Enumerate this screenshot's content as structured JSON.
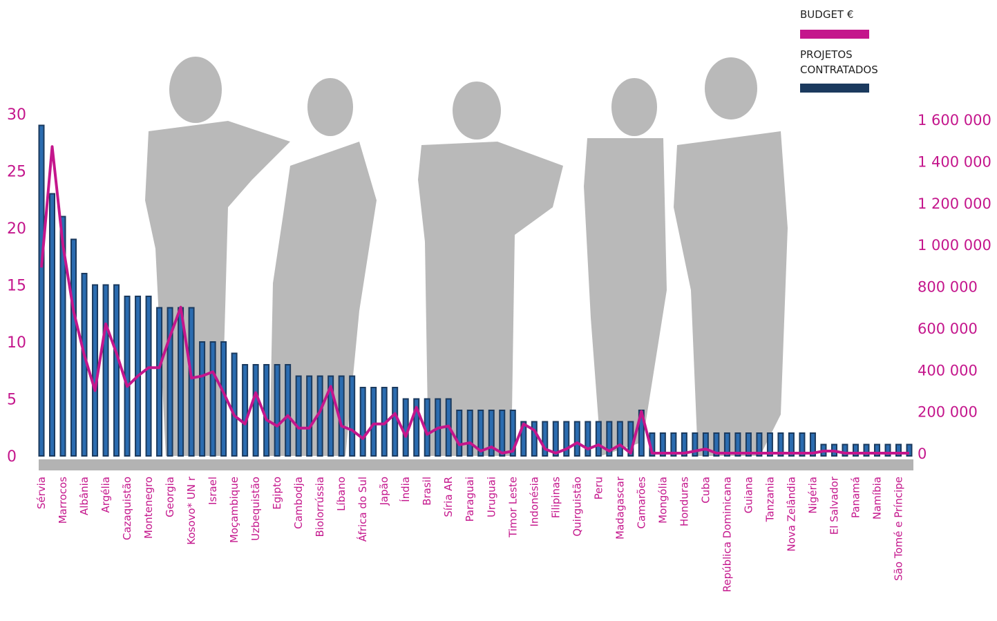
{
  "chart_data": {
    "type": "bar-line",
    "categories": [
      "Sérvia",
      null,
      "Marrocos",
      null,
      "Albânia",
      null,
      "Argélia",
      null,
      "Cazaquistão",
      null,
      "Montenegro",
      null,
      "Georgia",
      null,
      "Kosovo* UN r",
      null,
      "Israel",
      null,
      "Moçambique",
      null,
      "Uzbequistão",
      null,
      "Egipto",
      null,
      "Cambodja",
      null,
      "Biolorrússia",
      null,
      "Líbano",
      null,
      "África do Sul",
      null,
      "Japão",
      null,
      "Índia",
      null,
      "Brasil",
      null,
      "Síria AR",
      null,
      "Paraguai",
      null,
      "Uruguai",
      null,
      "Timor Leste",
      null,
      "Indonésia",
      null,
      "Filipinas",
      null,
      "Quirguistão",
      null,
      "Peru",
      null,
      "Madagascar",
      null,
      "Camarões",
      null,
      "Mongólia",
      null,
      "Honduras",
      null,
      "Cuba",
      null,
      "República Dominicana",
      null,
      "Guiana",
      null,
      "Tanzania",
      null,
      "Nova Zelândia",
      null,
      "Nigéria",
      null,
      "El Salvador",
      null,
      "Panamá",
      null,
      "Namíbia",
      null,
      "São Tomé e Príncipe",
      null
    ],
    "series": [
      {
        "name": "PROJETOS CONTRATADOS",
        "color": "#1b3a5e",
        "type": "bar",
        "values": [
          29,
          23,
          21,
          19,
          16,
          15,
          15,
          15,
          14,
          14,
          14,
          13,
          13,
          13,
          13,
          10,
          10,
          10,
          9,
          8,
          8,
          8,
          8,
          8,
          7,
          7,
          7,
          7,
          7,
          7,
          6,
          6,
          6,
          6,
          5,
          5,
          5,
          5,
          5,
          4,
          4,
          4,
          4,
          4,
          4,
          3,
          3,
          3,
          3,
          3,
          3,
          3,
          3,
          3,
          3,
          3,
          4,
          2,
          2,
          2,
          2,
          2,
          2,
          2,
          2,
          2,
          2,
          2,
          2,
          2,
          2,
          2,
          2,
          1,
          1,
          1,
          1,
          1,
          1,
          1,
          1,
          1
        ]
      },
      {
        "name": "BUDGET €",
        "color": "#c4168c",
        "type": "line",
        "axis": "y2",
        "values": [
          890000,
          1470000,
          1000000,
          680000,
          470000,
          300000,
          620000,
          480000,
          320000,
          370000,
          410000,
          410000,
          560000,
          700000,
          360000,
          370000,
          390000,
          290000,
          180000,
          140000,
          290000,
          160000,
          130000,
          180000,
          120000,
          120000,
          200000,
          320000,
          130000,
          110000,
          70000,
          140000,
          140000,
          190000,
          80000,
          220000,
          90000,
          120000,
          130000,
          40000,
          50000,
          10000,
          30000,
          0,
          10000,
          140000,
          110000,
          20000,
          0,
          20000,
          50000,
          20000,
          40000,
          10000,
          40000,
          0,
          200000,
          0,
          0,
          0,
          0,
          10000,
          20000,
          0,
          0,
          0,
          0,
          0,
          0,
          0,
          0,
          0,
          0,
          10000,
          10000,
          0,
          0,
          0,
          0,
          0,
          0,
          0
        ]
      }
    ],
    "ylim": [
      0,
      30
    ],
    "yticks": [
      0,
      5,
      10,
      15,
      20,
      25,
      30
    ],
    "y2lim": [
      0,
      1600000
    ],
    "y2ticks": [
      0,
      {
        "value": 200000,
        "label": "200 000"
      },
      {
        "value": 400000,
        "label": "400 000"
      },
      {
        "value": 600000,
        "label": "600 000"
      },
      {
        "value": 800000,
        "label": "800 000"
      },
      {
        "value": 1000000,
        "label": "1 000 000"
      },
      {
        "value": 1200000,
        "label": "1 200 000"
      },
      {
        "value": 1400000,
        "label": "1 400 000"
      },
      {
        "value": 1600000,
        "label": "1 600 000"
      }
    ],
    "grid": true,
    "axis_color": "#c4168c"
  }
}
